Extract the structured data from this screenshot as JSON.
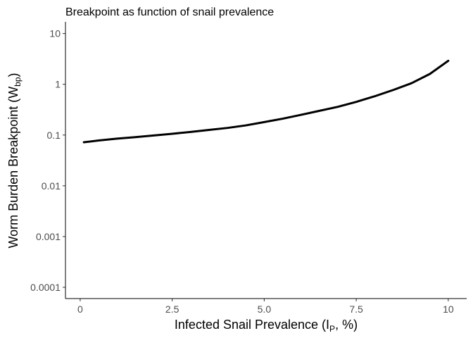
{
  "chart_data": {
    "type": "line",
    "title": "Breakpoint as function of snail prevalence",
    "xlabel": {
      "main": "Infected Snail Prevalence (I",
      "sub": "P",
      "tail": ", %)"
    },
    "ylabel": {
      "main": "Worm Burden Breakpoint (W",
      "sub": "bp",
      "tail": ")"
    },
    "x_ticks": [
      "0",
      "2.5",
      "5.0",
      "7.5",
      "10"
    ],
    "x_tick_values": [
      0,
      2.5,
      5,
      7.5,
      10
    ],
    "y_ticks": [
      "0.0001",
      "0.001",
      "0.01",
      "0.1",
      "1",
      "10"
    ],
    "y_tick_values": [
      0.0001,
      0.001,
      0.01,
      0.1,
      1,
      10
    ],
    "xlim": [
      -0.4,
      10.5
    ],
    "ylim": [
      6e-05,
      17
    ],
    "y_scale": "log",
    "grid": false,
    "legend": "none",
    "series": [
      {
        "x": [
          0.1,
          0.5,
          1,
          1.5,
          2,
          2.5,
          3,
          3.5,
          4,
          4.5,
          5,
          5.5,
          6,
          6.5,
          7,
          7.5,
          8,
          8.5,
          9,
          9.5,
          10
        ],
        "y": [
          0.072,
          0.078,
          0.085,
          0.091,
          0.098,
          0.106,
          0.115,
          0.126,
          0.138,
          0.155,
          0.18,
          0.21,
          0.25,
          0.3,
          0.36,
          0.45,
          0.58,
          0.77,
          1.05,
          1.6,
          2.9
        ]
      }
    ],
    "colors": {
      "line": "#000000",
      "axis": "#000000",
      "tick_text": "#4d4d4d"
    }
  }
}
